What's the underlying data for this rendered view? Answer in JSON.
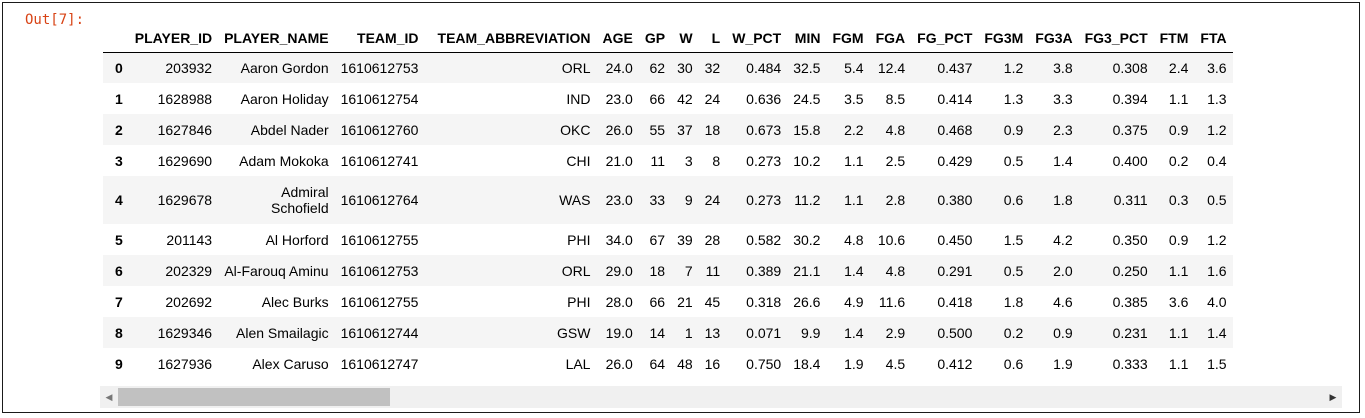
{
  "cell": {
    "prompt": "Out[7]:"
  },
  "dataframe": {
    "columns": [
      "PLAYER_ID",
      "PLAYER_NAME",
      "TEAM_ID",
      "TEAM_ABBREVIATION",
      "AGE",
      "GP",
      "W",
      "L",
      "W_PCT",
      "MIN",
      "FGM",
      "FGA",
      "FG_PCT",
      "FG3M",
      "FG3A",
      "FG3_PCT",
      "FTM",
      "FTA"
    ],
    "rows": [
      {
        "index": "0",
        "cells": [
          "203932",
          "Aaron Gordon",
          "1610612753",
          "ORL",
          "24.0",
          "62",
          "30",
          "32",
          "0.484",
          "32.5",
          "5.4",
          "12.4",
          "0.437",
          "1.2",
          "3.8",
          "0.308",
          "2.4",
          "3.6"
        ]
      },
      {
        "index": "1",
        "cells": [
          "1628988",
          "Aaron Holiday",
          "1610612754",
          "IND",
          "23.0",
          "66",
          "42",
          "24",
          "0.636",
          "24.5",
          "3.5",
          "8.5",
          "0.414",
          "1.3",
          "3.3",
          "0.394",
          "1.1",
          "1.3"
        ]
      },
      {
        "index": "2",
        "cells": [
          "1627846",
          "Abdel Nader",
          "1610612760",
          "OKC",
          "26.0",
          "55",
          "37",
          "18",
          "0.673",
          "15.8",
          "2.2",
          "4.8",
          "0.468",
          "0.9",
          "2.3",
          "0.375",
          "0.9",
          "1.2"
        ]
      },
      {
        "index": "3",
        "cells": [
          "1629690",
          "Adam Mokoka",
          "1610612741",
          "CHI",
          "21.0",
          "11",
          "3",
          "8",
          "0.273",
          "10.2",
          "1.1",
          "2.5",
          "0.429",
          "0.5",
          "1.4",
          "0.400",
          "0.2",
          "0.4"
        ]
      },
      {
        "index": "4",
        "cells": [
          "1629678",
          "Admiral Schofield",
          "1610612764",
          "WAS",
          "23.0",
          "33",
          "9",
          "24",
          "0.273",
          "11.2",
          "1.1",
          "2.8",
          "0.380",
          "0.6",
          "1.8",
          "0.311",
          "0.3",
          "0.5"
        ]
      },
      {
        "index": "5",
        "cells": [
          "201143",
          "Al Horford",
          "1610612755",
          "PHI",
          "34.0",
          "67",
          "39",
          "28",
          "0.582",
          "30.2",
          "4.8",
          "10.6",
          "0.450",
          "1.5",
          "4.2",
          "0.350",
          "0.9",
          "1.2"
        ]
      },
      {
        "index": "6",
        "cells": [
          "202329",
          "Al-Farouq Aminu",
          "1610612753",
          "ORL",
          "29.0",
          "18",
          "7",
          "11",
          "0.389",
          "21.1",
          "1.4",
          "4.8",
          "0.291",
          "0.5",
          "2.0",
          "0.250",
          "1.1",
          "1.6"
        ]
      },
      {
        "index": "7",
        "cells": [
          "202692",
          "Alec Burks",
          "1610612755",
          "PHI",
          "28.0",
          "66",
          "21",
          "45",
          "0.318",
          "26.6",
          "4.9",
          "11.6",
          "0.418",
          "1.8",
          "4.6",
          "0.385",
          "3.6",
          "4.0"
        ]
      },
      {
        "index": "8",
        "cells": [
          "1629346",
          "Alen Smailagic",
          "1610612744",
          "GSW",
          "19.0",
          "14",
          "1",
          "13",
          "0.071",
          "9.9",
          "1.4",
          "2.9",
          "0.500",
          "0.2",
          "0.9",
          "0.231",
          "1.1",
          "1.4"
        ]
      },
      {
        "index": "9",
        "cells": [
          "1627936",
          "Alex Caruso",
          "1610612747",
          "LAL",
          "26.0",
          "64",
          "48",
          "16",
          "0.750",
          "18.4",
          "1.9",
          "4.5",
          "0.412",
          "0.6",
          "1.9",
          "0.333",
          "1.1",
          "1.5"
        ]
      }
    ]
  },
  "scrollbar": {
    "left_arrow_icon": "◀",
    "right_arrow_icon": "▶",
    "position_fraction": 0.0
  }
}
